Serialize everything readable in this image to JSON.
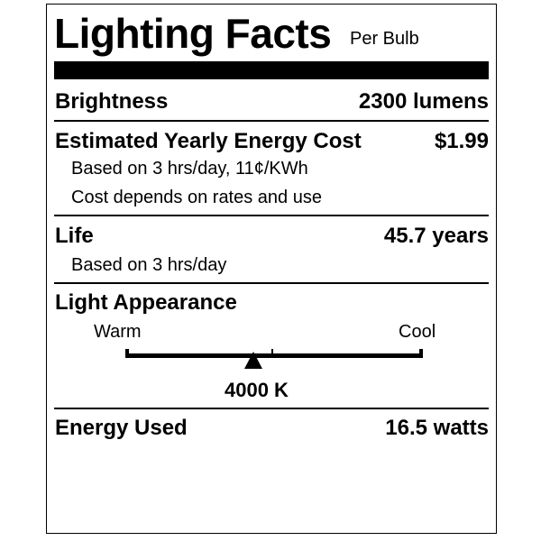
{
  "header": {
    "title": "Lighting Facts",
    "subtitle": "Per Bulb"
  },
  "brightness": {
    "label": "Brightness",
    "value": "2300 lumens"
  },
  "energy_cost": {
    "label": "Estimated Yearly Energy Cost",
    "value": "$1.99",
    "note1": "Based on 3 hrs/day, 11¢/KWh",
    "note2": "Cost depends on rates and use"
  },
  "life": {
    "label": "Life",
    "value": "45.7 years",
    "note": "Based on 3 hrs/day"
  },
  "light_appearance": {
    "label": "Light Appearance",
    "warm_label": "Warm",
    "cool_label": "Cool",
    "value": "4000 K",
    "marker_fraction": 0.43
  },
  "energy_used": {
    "label": "Energy Used",
    "value": "16.5 watts"
  }
}
